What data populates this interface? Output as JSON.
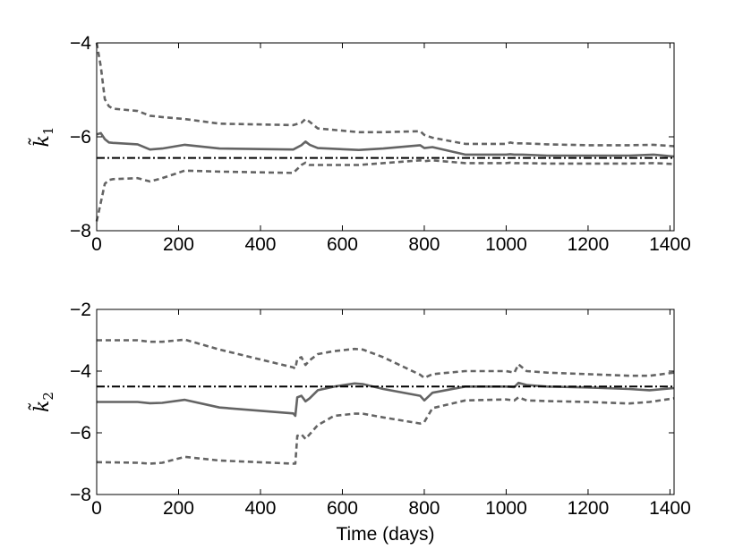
{
  "chart_data": [
    {
      "type": "line",
      "ylabel": "k̃",
      "ylabel_subscript": "1",
      "xlim": [
        0,
        1410
      ],
      "ylim": [
        -8,
        -4
      ],
      "xticks": [
        0,
        200,
        400,
        600,
        800,
        1000,
        1200,
        1400
      ],
      "yticks": [
        -8,
        -6,
        -4
      ],
      "xtick_labels": [
        "0",
        "200",
        "400",
        "600",
        "800",
        "1000",
        "1200",
        "1400"
      ],
      "ytick_labels": [
        "−8",
        "−6",
        "−4"
      ],
      "grid": false,
      "series": [
        {
          "style": "solid",
          "color": "#646464",
          "x": [
            0,
            10,
            20,
            30,
            40,
            100,
            130,
            160,
            215,
            300,
            480,
            500,
            510,
            520,
            540,
            640,
            700,
            790,
            800,
            820,
            900,
            1000,
            1010,
            1020,
            1040,
            1100,
            1200,
            1300,
            1360,
            1410
          ],
          "y": [
            -5.95,
            -5.92,
            -6.05,
            -6.12,
            -6.13,
            -6.16,
            -6.27,
            -6.25,
            -6.17,
            -6.25,
            -6.27,
            -6.18,
            -6.1,
            -6.17,
            -6.24,
            -6.28,
            -6.25,
            -6.18,
            -6.24,
            -6.22,
            -6.38,
            -6.38,
            -6.37,
            -6.38,
            -6.38,
            -6.4,
            -6.4,
            -6.4,
            -6.38,
            -6.42
          ]
        },
        {
          "style": "dashed",
          "color": "#646464",
          "x": [
            0,
            10,
            20,
            30,
            40,
            100,
            130,
            160,
            215,
            300,
            480,
            500,
            510,
            520,
            540,
            640,
            700,
            790,
            800,
            820,
            900,
            1000,
            1010,
            1020,
            1040,
            1100,
            1200,
            1300,
            1360,
            1410
          ],
          "y": [
            -4.0,
            -4.5,
            -5.2,
            -5.35,
            -5.4,
            -5.45,
            -5.55,
            -5.58,
            -5.62,
            -5.72,
            -5.75,
            -5.7,
            -5.62,
            -5.68,
            -5.82,
            -5.9,
            -5.9,
            -5.88,
            -5.96,
            -6.02,
            -6.15,
            -6.15,
            -6.12,
            -6.14,
            -6.14,
            -6.16,
            -6.18,
            -6.18,
            -6.17,
            -6.2
          ]
        },
        {
          "style": "dashed",
          "color": "#646464",
          "x": [
            0,
            10,
            20,
            30,
            40,
            100,
            130,
            160,
            215,
            300,
            480,
            500,
            510,
            520,
            540,
            640,
            700,
            790,
            800,
            820,
            900,
            1000,
            1010,
            1020,
            1040,
            1100,
            1200,
            1300,
            1360,
            1410
          ],
          "y": [
            -7.8,
            -7.4,
            -7.0,
            -6.92,
            -6.9,
            -6.88,
            -6.95,
            -6.88,
            -6.72,
            -6.74,
            -6.77,
            -6.6,
            -6.55,
            -6.6,
            -6.6,
            -6.6,
            -6.56,
            -6.5,
            -6.52,
            -6.5,
            -6.56,
            -6.56,
            -6.55,
            -6.56,
            -6.56,
            -6.57,
            -6.57,
            -6.57,
            -6.56,
            -6.58
          ]
        },
        {
          "style": "dashdot",
          "color": "#000000",
          "x": [
            0,
            1410
          ],
          "y": [
            -6.45,
            -6.45
          ]
        }
      ]
    },
    {
      "type": "line",
      "ylabel": "k̃",
      "ylabel_subscript": "2",
      "xlabel": "Time (days)",
      "xlim": [
        0,
        1410
      ],
      "ylim": [
        -8,
        -2
      ],
      "xticks": [
        0,
        200,
        400,
        600,
        800,
        1000,
        1200,
        1400
      ],
      "yticks": [
        -8,
        -6,
        -4,
        -2
      ],
      "xtick_labels": [
        "0",
        "200",
        "400",
        "600",
        "800",
        "1000",
        "1200",
        "1400"
      ],
      "ytick_labels": [
        "−8",
        "−6",
        "−4",
        "−2"
      ],
      "grid": false,
      "series": [
        {
          "style": "solid",
          "color": "#646464",
          "x": [
            0,
            100,
            130,
            160,
            215,
            300,
            480,
            485,
            490,
            500,
            510,
            520,
            540,
            580,
            630,
            650,
            700,
            790,
            800,
            820,
            900,
            1000,
            1020,
            1030,
            1050,
            1100,
            1200,
            1300,
            1350,
            1410
          ],
          "y": [
            -5.0,
            -5.0,
            -5.04,
            -5.03,
            -4.93,
            -5.18,
            -5.37,
            -5.45,
            -4.85,
            -4.8,
            -4.98,
            -4.88,
            -4.62,
            -4.5,
            -4.4,
            -4.42,
            -4.58,
            -4.8,
            -4.95,
            -4.7,
            -4.5,
            -4.5,
            -4.52,
            -4.38,
            -4.45,
            -4.5,
            -4.53,
            -4.58,
            -4.62,
            -4.55
          ]
        },
        {
          "style": "dashed",
          "color": "#646464",
          "x": [
            0,
            100,
            130,
            160,
            215,
            300,
            480,
            485,
            490,
            500,
            510,
            520,
            540,
            580,
            630,
            650,
            700,
            790,
            800,
            820,
            900,
            1000,
            1020,
            1030,
            1050,
            1100,
            1200,
            1300,
            1350,
            1410
          ],
          "y": [
            -3.0,
            -3.0,
            -3.05,
            -3.05,
            -2.98,
            -3.3,
            -3.88,
            -3.92,
            -3.6,
            -3.55,
            -3.8,
            -3.65,
            -3.45,
            -3.35,
            -3.28,
            -3.3,
            -3.55,
            -4.12,
            -4.22,
            -4.1,
            -4.0,
            -4.0,
            -4.05,
            -3.78,
            -4.0,
            -4.05,
            -4.1,
            -4.15,
            -4.15,
            -4.05
          ]
        },
        {
          "style": "dashed",
          "color": "#646464",
          "x": [
            0,
            100,
            130,
            160,
            215,
            300,
            480,
            485,
            490,
            500,
            510,
            520,
            540,
            580,
            630,
            650,
            700,
            790,
            800,
            820,
            900,
            1000,
            1020,
            1030,
            1050,
            1100,
            1200,
            1300,
            1350,
            1410
          ],
          "y": [
            -6.95,
            -6.97,
            -7.0,
            -6.97,
            -6.78,
            -6.9,
            -7.0,
            -7.0,
            -6.1,
            -6.05,
            -6.2,
            -6.05,
            -5.75,
            -5.45,
            -5.38,
            -5.38,
            -5.5,
            -5.7,
            -5.65,
            -5.2,
            -4.95,
            -4.92,
            -4.95,
            -4.85,
            -4.95,
            -4.97,
            -5.0,
            -5.05,
            -5.0,
            -4.88
          ]
        },
        {
          "style": "dashdot",
          "color": "#000000",
          "x": [
            0,
            1410
          ],
          "y": [
            -4.5,
            -4.5
          ]
        }
      ]
    }
  ]
}
